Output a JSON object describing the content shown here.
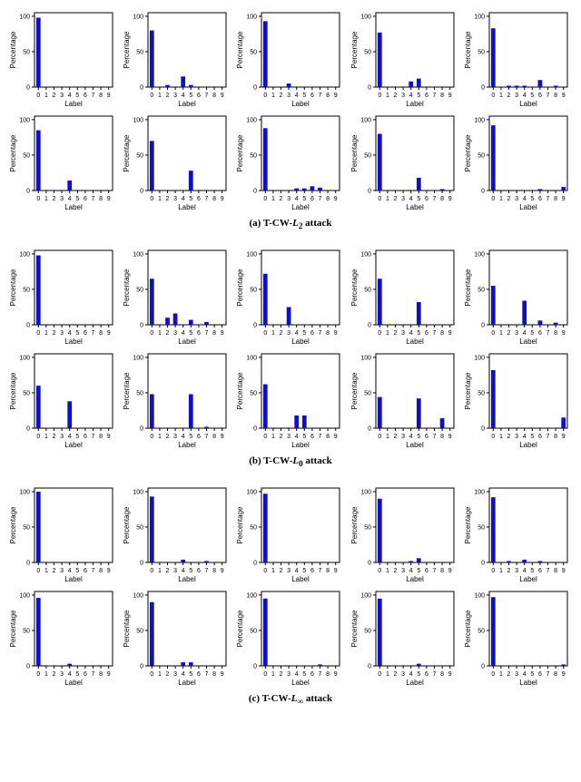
{
  "global": {
    "xlabel": "Label",
    "ylabel": "Percentage",
    "xticks": [
      0,
      1,
      2,
      3,
      4,
      5,
      6,
      7,
      8,
      9
    ],
    "yticks": [
      0,
      50,
      100
    ],
    "ylim": [
      0,
      105
    ],
    "bar_color": "#1010c0",
    "axis_color": "#000000",
    "tick_fontsize": 7,
    "label_fontsize": 8,
    "bar_width": 0.55,
    "caption_fontsize": 11
  },
  "sections": [
    {
      "caption_prefix": "(a) T-CW-",
      "caption_math": "L",
      "caption_sub": "2",
      "caption_suffix": " attack",
      "charts": [
        {
          "values": [
            98,
            0,
            0,
            0,
            0,
            0,
            0,
            0,
            0,
            0
          ]
        },
        {
          "values": [
            80,
            0,
            3,
            0,
            15,
            3,
            0,
            0,
            0,
            0
          ]
        },
        {
          "values": [
            93,
            0,
            0,
            5,
            0,
            0,
            0,
            0,
            0,
            0
          ]
        },
        {
          "values": [
            77,
            0,
            0,
            0,
            8,
            12,
            0,
            0,
            0,
            0
          ]
        },
        {
          "values": [
            83,
            0,
            2,
            2,
            2,
            0,
            10,
            0,
            2,
            0
          ]
        },
        {
          "values": [
            85,
            0,
            0,
            0,
            14,
            0,
            0,
            0,
            0,
            0
          ]
        },
        {
          "values": [
            70,
            0,
            0,
            0,
            0,
            28,
            0,
            0,
            0,
            0
          ]
        },
        {
          "values": [
            88,
            0,
            0,
            0,
            3,
            3,
            6,
            4,
            0,
            0
          ]
        },
        {
          "values": [
            80,
            0,
            0,
            0,
            0,
            18,
            0,
            0,
            2,
            0
          ]
        },
        {
          "values": [
            92,
            0,
            0,
            0,
            0,
            0,
            2,
            0,
            0,
            5
          ]
        }
      ]
    },
    {
      "caption_prefix": "(b) T-CW-",
      "caption_math": "L",
      "caption_sub": "0",
      "caption_suffix": " attack",
      "charts": [
        {
          "values": [
            98,
            0,
            0,
            0,
            0,
            0,
            0,
            0,
            0,
            0
          ]
        },
        {
          "values": [
            65,
            0,
            10,
            16,
            0,
            7,
            0,
            4,
            0,
            0
          ]
        },
        {
          "values": [
            72,
            0,
            0,
            25,
            0,
            0,
            0,
            0,
            0,
            0
          ]
        },
        {
          "values": [
            65,
            0,
            0,
            0,
            0,
            32,
            0,
            0,
            0,
            0
          ]
        },
        {
          "values": [
            55,
            0,
            0,
            0,
            34,
            0,
            6,
            0,
            3,
            0
          ]
        },
        {
          "values": [
            60,
            0,
            0,
            0,
            38,
            0,
            0,
            0,
            0,
            0
          ]
        },
        {
          "values": [
            48,
            0,
            0,
            0,
            0,
            48,
            0,
            2,
            0,
            0
          ]
        },
        {
          "values": [
            62,
            0,
            0,
            0,
            18,
            18,
            0,
            0,
            0,
            0
          ]
        },
        {
          "values": [
            44,
            0,
            0,
            0,
            0,
            42,
            0,
            0,
            14,
            0
          ]
        },
        {
          "values": [
            82,
            0,
            0,
            0,
            0,
            0,
            0,
            0,
            0,
            15
          ]
        }
      ]
    },
    {
      "caption_prefix": "(c) T-CW-",
      "caption_math": "L",
      "caption_sub": "∞",
      "caption_suffix": " attack",
      "charts": [
        {
          "values": [
            100,
            0,
            0,
            0,
            0,
            0,
            0,
            0,
            0,
            0
          ]
        },
        {
          "values": [
            93,
            0,
            0,
            0,
            4,
            0,
            0,
            2,
            0,
            0
          ]
        },
        {
          "values": [
            97,
            0,
            0,
            0,
            0,
            0,
            0,
            0,
            0,
            0
          ]
        },
        {
          "values": [
            90,
            0,
            0,
            0,
            2,
            6,
            0,
            0,
            0,
            0
          ]
        },
        {
          "values": [
            92,
            0,
            2,
            0,
            4,
            0,
            2,
            0,
            0,
            0
          ]
        },
        {
          "values": [
            96,
            0,
            0,
            0,
            3,
            0,
            0,
            0,
            0,
            0
          ]
        },
        {
          "values": [
            90,
            0,
            0,
            0,
            5,
            5,
            0,
            0,
            0,
            0
          ]
        },
        {
          "values": [
            95,
            0,
            0,
            0,
            0,
            0,
            0,
            2,
            0,
            0
          ]
        },
        {
          "values": [
            95,
            0,
            0,
            0,
            0,
            3,
            0,
            0,
            0,
            0
          ]
        },
        {
          "values": [
            97,
            0,
            0,
            0,
            0,
            0,
            0,
            0,
            0,
            2
          ]
        }
      ]
    }
  ]
}
